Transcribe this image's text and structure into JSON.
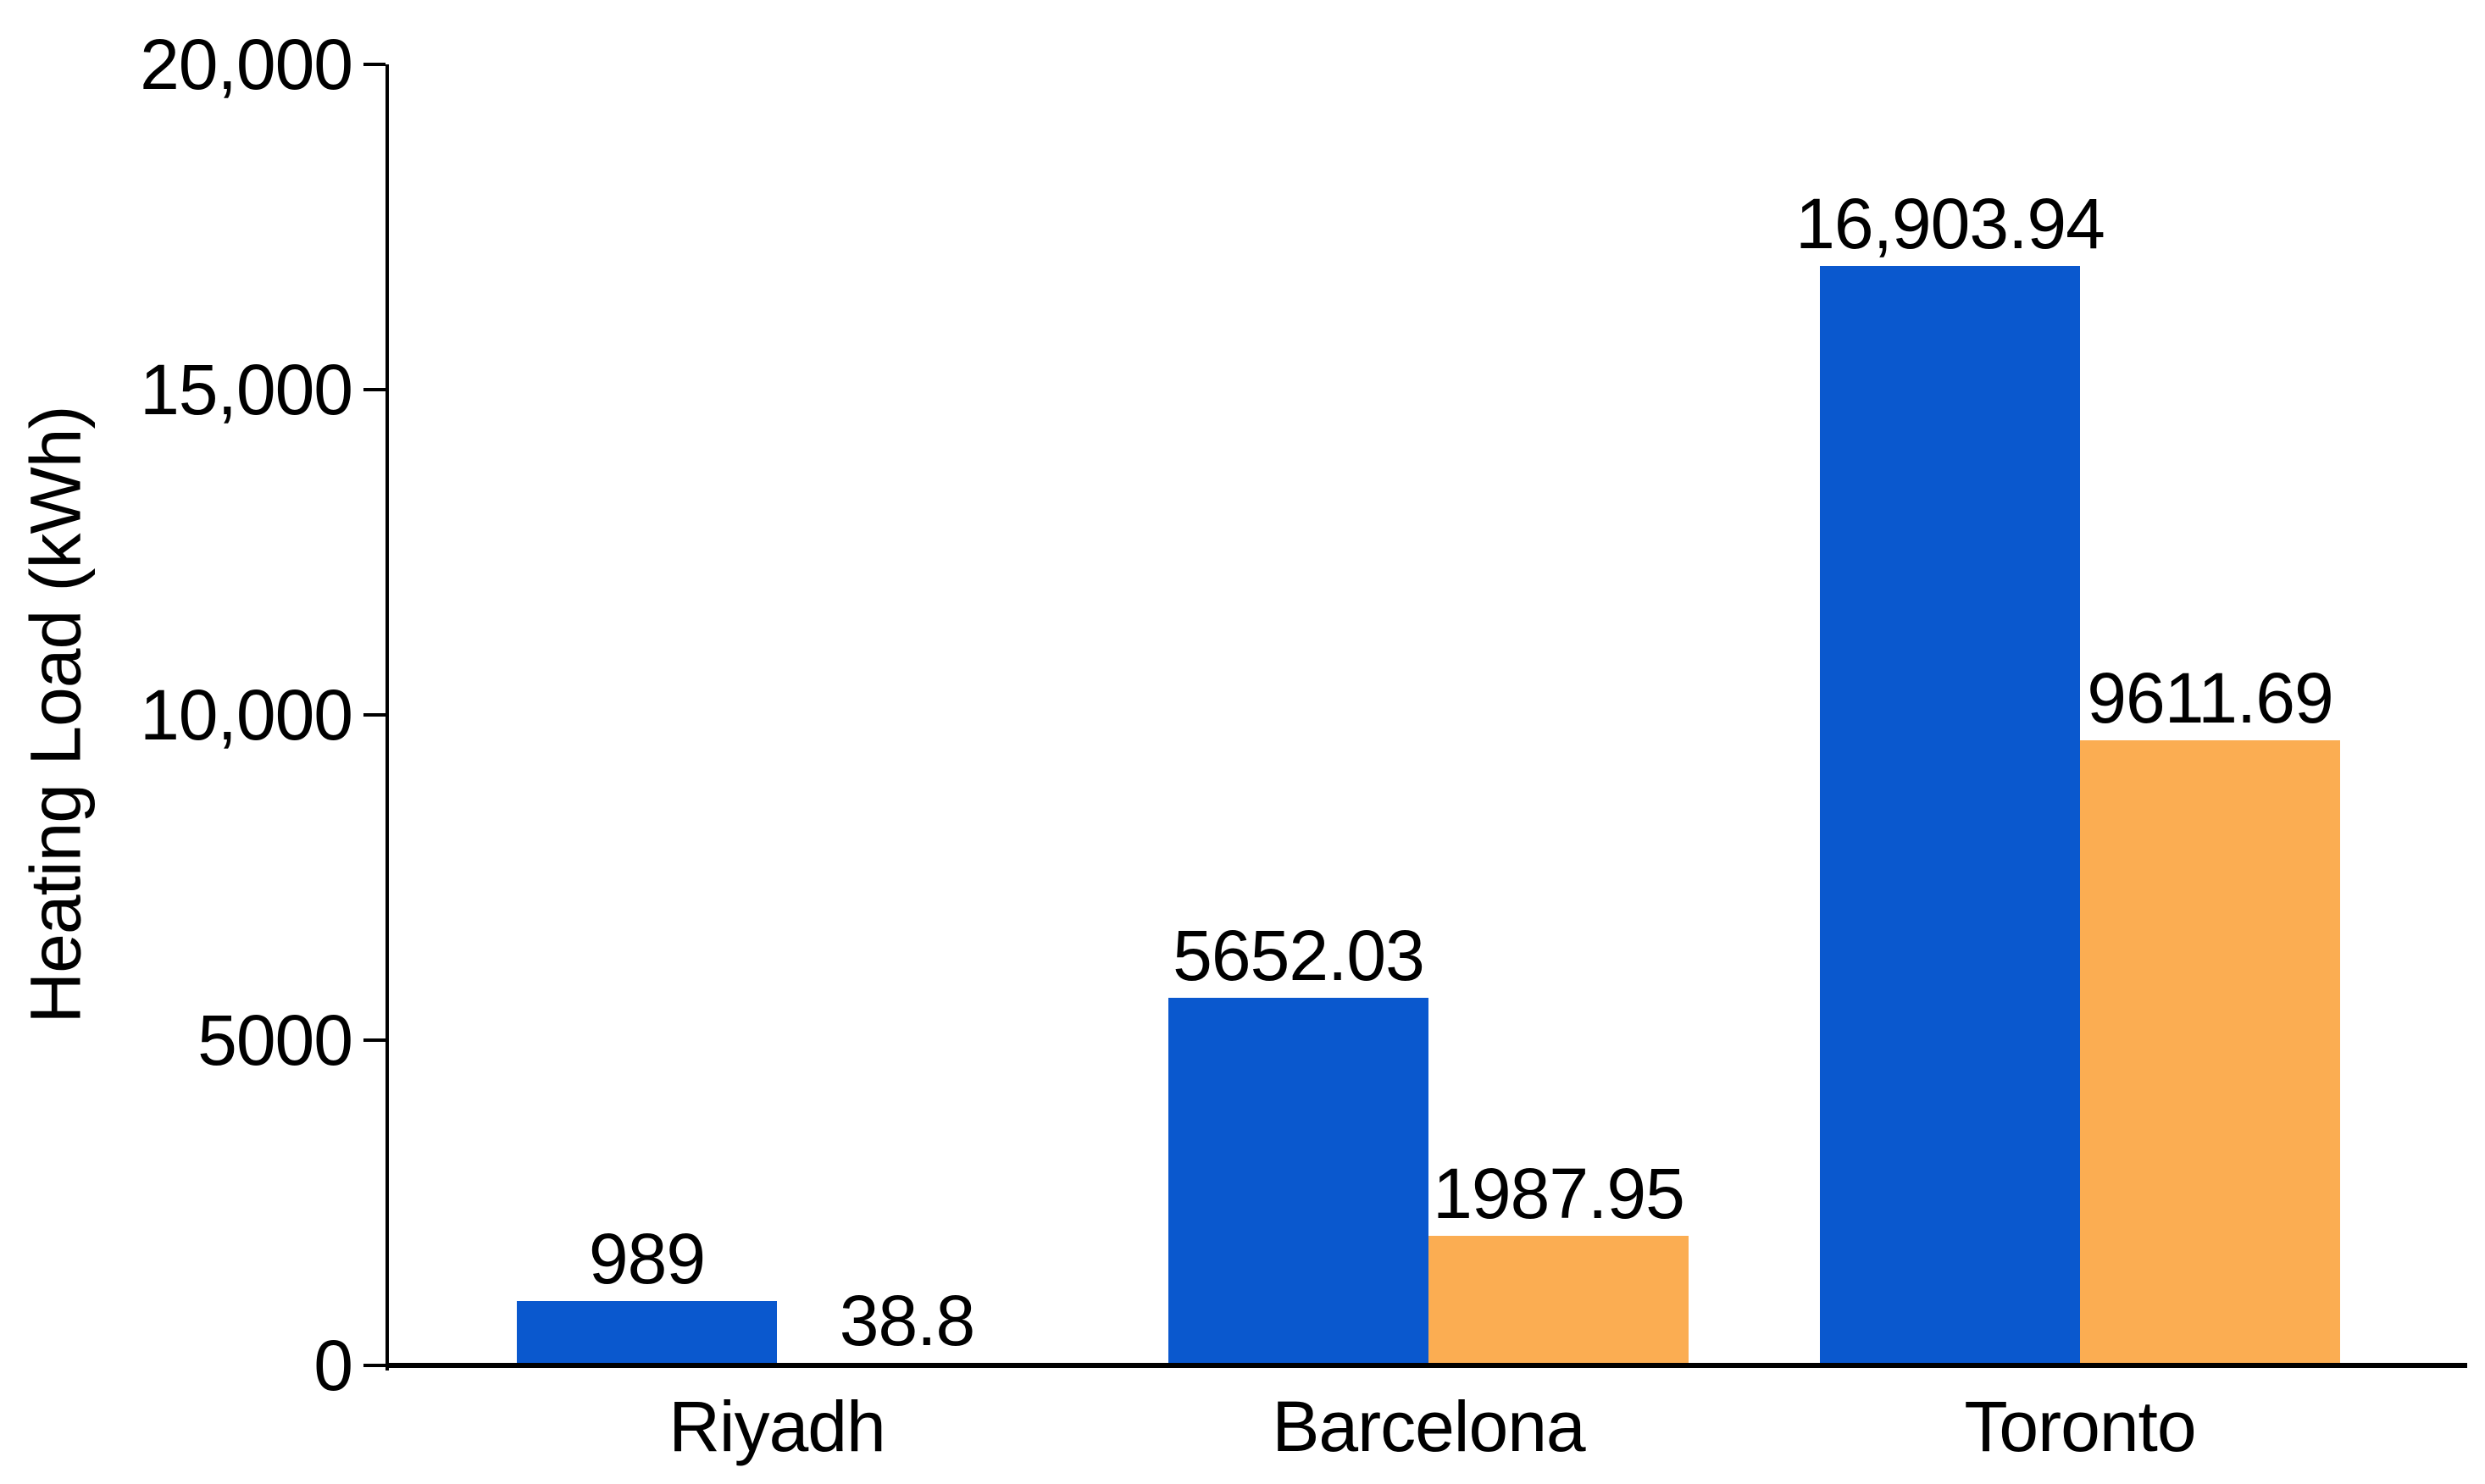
{
  "chart_data": {
    "type": "bar",
    "title": "",
    "xlabel": "",
    "ylabel": "Heating Load (kWh)",
    "categories": [
      "Riyadh",
      "Barcelona",
      "Toronto"
    ],
    "series": [
      {
        "name": "blue",
        "color": "#0a58ce",
        "values": [
          989,
          5652.03,
          16903.94
        ],
        "labels": [
          "989",
          "5652.03",
          "16,903.94"
        ]
      },
      {
        "name": "orange",
        "color": "#fbad52",
        "values": [
          38.8,
          1987.95,
          9611.69
        ],
        "labels": [
          "38.8",
          "1987.95",
          "9611.69"
        ]
      }
    ],
    "ylim": [
      0,
      20000
    ],
    "yticks": [
      {
        "value": 0,
        "label": "0"
      },
      {
        "value": 5000,
        "label": "5000"
      },
      {
        "value": 10000,
        "label": "10,000"
      },
      {
        "value": 15000,
        "label": "15,000"
      },
      {
        "value": 20000,
        "label": "20,000"
      }
    ],
    "grid": false,
    "legend": "none",
    "bar_value_labels": true,
    "axis_color": "#000000",
    "text_color": "#000000",
    "background": "#ffffff"
  }
}
